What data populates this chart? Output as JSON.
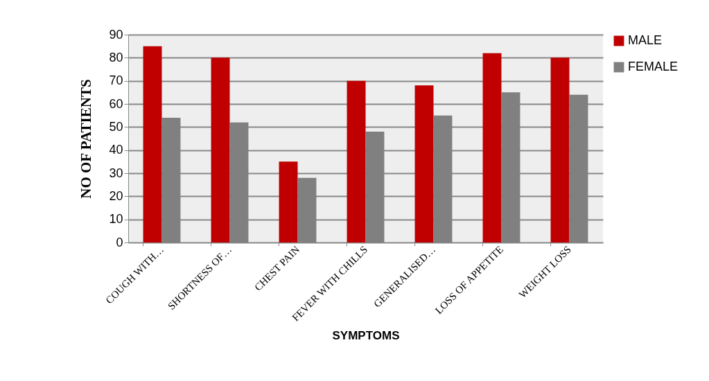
{
  "chart_data": {
    "type": "bar",
    "xlabel": "SYMPTOMS",
    "ylabel": "NO OF PATIENTS",
    "categories": [
      "COUGH WITH…",
      "SHORTNESS OF…",
      "CHEST PAIN",
      "FEVER WITH CHILLS",
      "GENERALISED…",
      "LOSS OF APPETITE",
      "WEIGHT LOSS"
    ],
    "series": [
      {
        "name": "MALE",
        "color": "#c00000",
        "values": [
          85,
          80,
          35,
          70,
          68,
          82,
          80
        ]
      },
      {
        "name": "FEMALE",
        "color": "#808080",
        "values": [
          54,
          52,
          28,
          48,
          55,
          65,
          64
        ]
      }
    ],
    "ylim": [
      0,
      90
    ],
    "yticks": [
      0,
      10,
      20,
      30,
      40,
      50,
      60,
      70,
      80,
      90
    ],
    "grid": "y",
    "legend": "right"
  }
}
